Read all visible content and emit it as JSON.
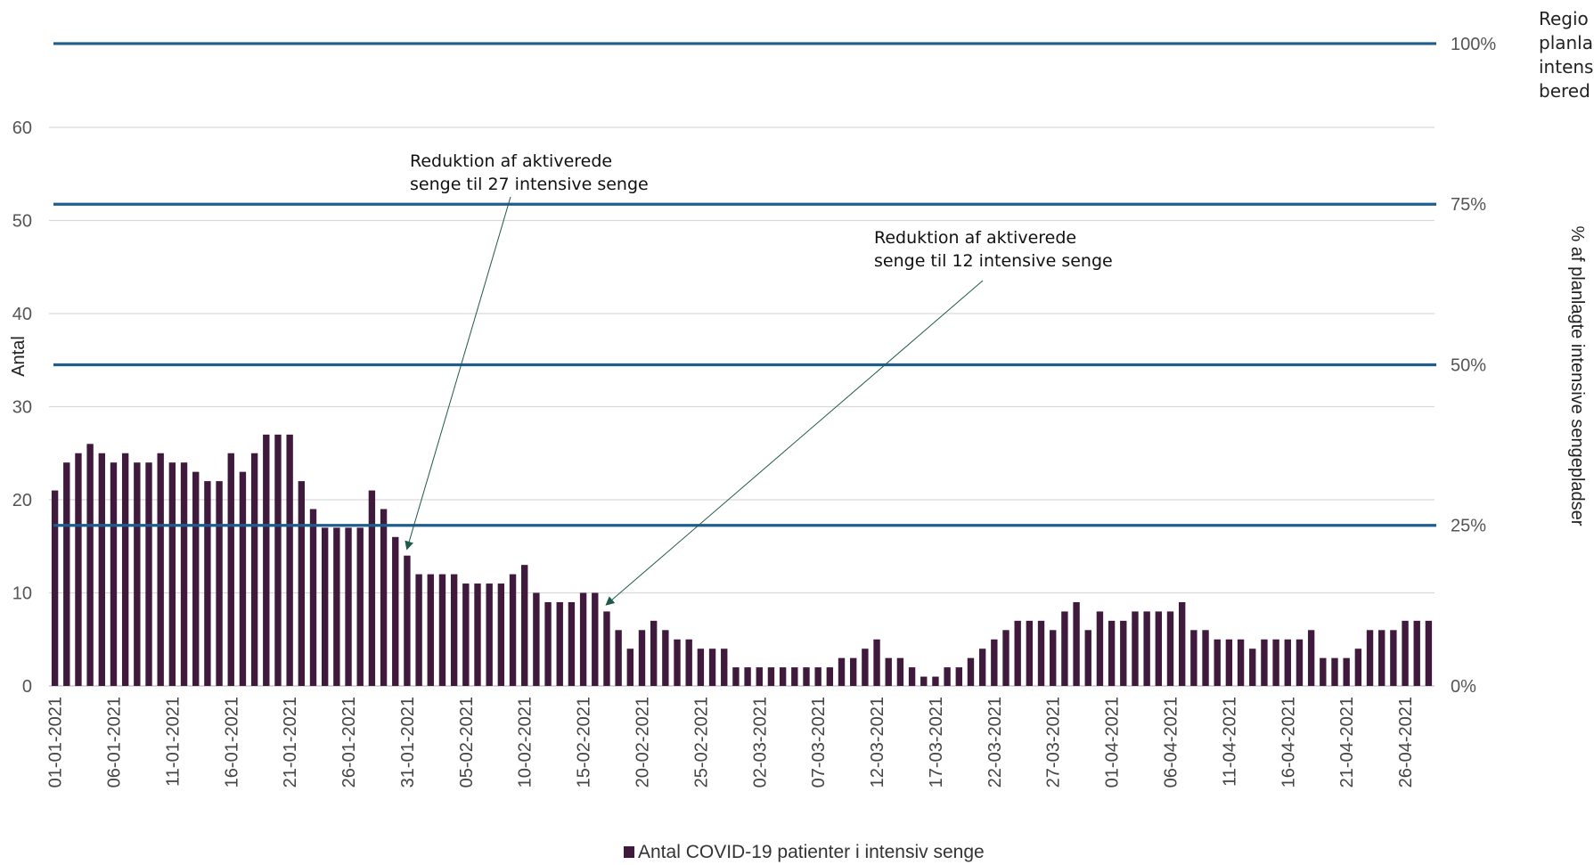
{
  "chart_data": {
    "type": "bar",
    "ylabel": "Antal",
    "y2label": "% af planlagte intensive sengepladser",
    "ylim": [
      0,
      69
    ],
    "yticks": [
      0,
      10,
      20,
      30,
      40,
      50,
      60
    ],
    "y2ticks": [
      "0%",
      "25%",
      "50%",
      "75%",
      "100%"
    ],
    "grid": true,
    "colors": {
      "bar": "#3f1a3d",
      "line": "#1f5e8c",
      "arrow": "#1f5a4a",
      "grid": "#d9d9d9"
    },
    "categories": [
      "01-01-2021",
      "02-01-2021",
      "03-01-2021",
      "04-01-2021",
      "05-01-2021",
      "06-01-2021",
      "07-01-2021",
      "08-01-2021",
      "09-01-2021",
      "10-01-2021",
      "11-01-2021",
      "12-01-2021",
      "13-01-2021",
      "14-01-2021",
      "15-01-2021",
      "16-01-2021",
      "17-01-2021",
      "18-01-2021",
      "19-01-2021",
      "20-01-2021",
      "21-01-2021",
      "22-01-2021",
      "23-01-2021",
      "24-01-2021",
      "25-01-2021",
      "26-01-2021",
      "27-01-2021",
      "28-01-2021",
      "29-01-2021",
      "30-01-2021",
      "31-01-2021",
      "01-02-2021",
      "02-02-2021",
      "03-02-2021",
      "04-02-2021",
      "05-02-2021",
      "06-02-2021",
      "07-02-2021",
      "08-02-2021",
      "09-02-2021",
      "10-02-2021",
      "11-02-2021",
      "12-02-2021",
      "13-02-2021",
      "14-02-2021",
      "15-02-2021",
      "16-02-2021",
      "17-02-2021",
      "18-02-2021",
      "19-02-2021",
      "20-02-2021",
      "21-02-2021",
      "22-02-2021",
      "23-02-2021",
      "24-02-2021",
      "25-02-2021",
      "26-02-2021",
      "27-02-2021",
      "28-02-2021",
      "01-03-2021",
      "02-03-2021",
      "03-03-2021",
      "04-03-2021",
      "05-03-2021",
      "06-03-2021",
      "07-03-2021",
      "08-03-2021",
      "09-03-2021",
      "10-03-2021",
      "11-03-2021",
      "12-03-2021",
      "13-03-2021",
      "14-03-2021",
      "15-03-2021",
      "16-03-2021",
      "17-03-2021",
      "18-03-2021",
      "19-03-2021",
      "20-03-2021",
      "21-03-2021",
      "22-03-2021",
      "23-03-2021",
      "24-03-2021",
      "25-03-2021",
      "26-03-2021",
      "27-03-2021",
      "28-03-2021",
      "29-03-2021",
      "30-03-2021",
      "31-03-2021",
      "01-04-2021",
      "02-04-2021",
      "03-04-2021",
      "04-04-2021",
      "05-04-2021",
      "06-04-2021",
      "07-04-2021",
      "08-04-2021",
      "09-04-2021",
      "10-04-2021",
      "11-04-2021",
      "12-04-2021",
      "13-04-2021",
      "14-04-2021",
      "15-04-2021",
      "16-04-2021",
      "17-04-2021",
      "18-04-2021",
      "19-04-2021",
      "20-04-2021",
      "21-04-2021",
      "22-04-2021",
      "23-04-2021",
      "24-04-2021",
      "25-04-2021",
      "26-04-2021",
      "27-04-2021",
      "28-04-2021"
    ],
    "series": [
      {
        "name": "Antal COVID-19 patienter i intensiv senge",
        "values": [
          21,
          24,
          25,
          26,
          25,
          24,
          25,
          24,
          24,
          25,
          24,
          24,
          23,
          22,
          22,
          25,
          23,
          25,
          27,
          27,
          27,
          22,
          19,
          17,
          17,
          17,
          17,
          21,
          19,
          16,
          14,
          12,
          12,
          12,
          12,
          11,
          11,
          11,
          11,
          12,
          13,
          10,
          9,
          9,
          9,
          10,
          10,
          8,
          6,
          4,
          6,
          7,
          6,
          5,
          5,
          4,
          4,
          4,
          2,
          2,
          2,
          2,
          2,
          2,
          2,
          2,
          2,
          3,
          3,
          4,
          5,
          3,
          3,
          2,
          1,
          1,
          2,
          2,
          3,
          4,
          5,
          6,
          7,
          7,
          7,
          6,
          8,
          9,
          6,
          8,
          7,
          7,
          8,
          8,
          8,
          8,
          9,
          6,
          6,
          5,
          5,
          5,
          4,
          5,
          5,
          5,
          5,
          6,
          3,
          3,
          3,
          4,
          6,
          6,
          6,
          7,
          7,
          7
        ]
      }
    ],
    "reference_lines": [
      {
        "label": "25%",
        "value": 17.25
      },
      {
        "label": "50%",
        "value": 34.5
      },
      {
        "label": "75%",
        "value": 51.75
      },
      {
        "label": "100%",
        "value": 69
      }
    ],
    "annotations": [
      {
        "lines": [
          "Reduktion af aktiverede",
          "senge til 27 intensive senge"
        ],
        "points_to": "31-01-2021"
      },
      {
        "lines": [
          "Reduktion af aktiverede",
          "senge til 12 intensive senge"
        ],
        "points_to": "17-02-2021"
      }
    ],
    "side_note": [
      "Regio",
      "planla",
      "intens",
      "bered"
    ],
    "legend": {
      "position": "bottom"
    }
  }
}
